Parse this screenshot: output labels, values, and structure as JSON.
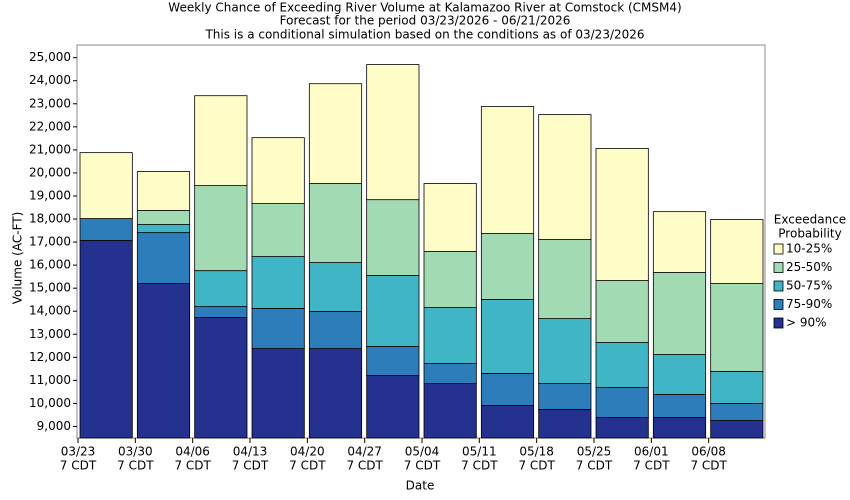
{
  "chart_data": {
    "type": "range-bar",
    "title": "Weekly Chance of Exceeding River Volume at Kalamazoo River at Comstock (CMSM4)",
    "subtitle": "Forecast for the period 03/23/2026 - 06/21/2026",
    "note": "This is a conditional simulation based on the conditions as of 03/23/2026",
    "x_label": "Date",
    "y_label": "Volume (AC-FT)",
    "categories": [
      "03/23",
      "03/30",
      "04/06",
      "04/13",
      "04/20",
      "04/27",
      "05/04",
      "05/11",
      "05/18",
      "05/25",
      "06/01",
      "06/08"
    ],
    "category_times": [
      "7 CDT",
      "7 CDT",
      "7 CDT",
      "7 CDT",
      "7 CDT",
      "7 CDT",
      "7 CDT",
      "7 CDT",
      "7 CDT",
      "7 CDT",
      "7 CDT",
      "7 CDT"
    ],
    "legend_title": [
      "Exceedance",
      "Probability"
    ],
    "series": [
      {
        "name": "> 90%",
        "color": "#25318f",
        "values": [
          17070,
          15200,
          13730,
          12380,
          12380,
          11210,
          10860,
          9910,
          9740,
          9390,
          9390,
          9260
        ]
      },
      {
        "name": "75-90%",
        "color": "#2d7dbb",
        "values": [
          18020,
          17410,
          14200,
          14120,
          13990,
          12470,
          11730,
          11300,
          10860,
          10690,
          10390,
          10000
        ]
      },
      {
        "name": "50-75%",
        "color": "#40b5c6",
        "values": [
          18020,
          17760,
          15760,
          16370,
          16110,
          15550,
          14160,
          14510,
          13680,
          12640,
          12120,
          11390
        ]
      },
      {
        "name": "25-50%",
        "color": "#a2dab4",
        "values": [
          18020,
          18370,
          19450,
          18670,
          19540,
          18840,
          16590,
          17370,
          17110,
          15330,
          15680,
          15200
        ]
      },
      {
        "name": "10-25%",
        "color": "#fefdc7",
        "values": [
          20880,
          20060,
          23350,
          21530,
          23870,
          24700,
          19540,
          22880,
          22530,
          21060,
          18320,
          17980
        ]
      }
    ],
    "ylim": [
      8500,
      25550
    ],
    "yticks": [
      {
        "value": 9000,
        "label": "9,000"
      },
      {
        "value": 10000,
        "label": "10,000"
      },
      {
        "value": 11000,
        "label": "11,000"
      },
      {
        "value": 12000,
        "label": "12,000"
      },
      {
        "value": 13000,
        "label": "13,000"
      },
      {
        "value": 14000,
        "label": "14,000"
      },
      {
        "value": 15000,
        "label": "15,000"
      },
      {
        "value": 16000,
        "label": "16,000"
      },
      {
        "value": 17000,
        "label": "17,000"
      },
      {
        "value": 18000,
        "label": "18,000"
      },
      {
        "value": 19000,
        "label": "19,000"
      },
      {
        "value": 20000,
        "label": "20,000"
      },
      {
        "value": 21000,
        "label": "21,000"
      },
      {
        "value": 22000,
        "label": "22,000"
      },
      {
        "value": 23000,
        "label": "23,000"
      },
      {
        "value": 24000,
        "label": "24,000"
      },
      {
        "value": 25000,
        "label": "25,000"
      }
    ],
    "grid": false,
    "legend_position": "right"
  }
}
